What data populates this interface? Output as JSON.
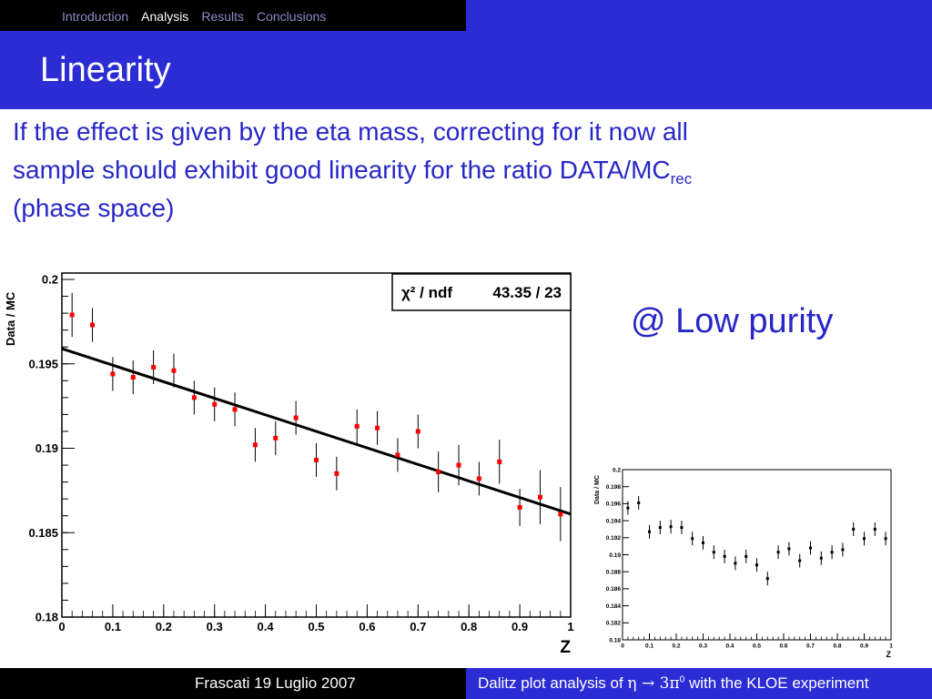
{
  "nav": {
    "items": [
      "Introduction",
      "Analysis",
      "Results",
      "Conclusions"
    ],
    "active_index": 1
  },
  "slide": {
    "title": "Linearity",
    "body_line1": "If the effect is given by the eta mass, correcting for it now all",
    "body_line2": "sample should exhibit good linearity for the ratio DATA/MC",
    "body_line2_sub": "rec",
    "body_line3": "(phase space)",
    "side_note": "@ Low purity"
  },
  "footer": {
    "left": "Frascati 19 Luglio 2007",
    "right_prefix": "Dalitz plot analysis of ",
    "right_eta": "η",
    "right_arrow": " → ",
    "right_3pi": "3π",
    "right_sup": "0",
    "right_suffix": " with the KLOE experiment"
  },
  "colors": {
    "blue": "#2c2cd4",
    "text_blue": "#2727c8",
    "marker_red": "#ff0000"
  },
  "chart_data": [
    {
      "type": "scatter",
      "title": "",
      "xlabel": "Z",
      "ylabel": "Data / MC",
      "xlim": [
        0,
        1
      ],
      "ylim": [
        0.18,
        0.2
      ],
      "xticks": [
        "0",
        "0.1",
        "0.2",
        "0.3",
        "0.4",
        "0.5",
        "0.6",
        "0.7",
        "0.8",
        "0.9",
        "1"
      ],
      "yticks": [
        "0.18",
        "0.185",
        "0.19",
        "0.195",
        "0.2"
      ],
      "stats_label": "χ² / ndf",
      "stats_value": "43.35 / 23",
      "marker_color": "#ff0000",
      "series": [
        {
          "x": [
            0.02,
            0.06,
            0.1,
            0.14,
            0.18,
            0.22,
            0.26,
            0.3,
            0.34,
            0.38,
            0.42,
            0.46,
            0.5,
            0.54,
            0.58,
            0.62,
            0.66,
            0.7,
            0.74,
            0.78,
            0.82,
            0.86,
            0.9,
            0.94,
            0.98
          ],
          "y": [
            0.1979,
            0.1973,
            0.1944,
            0.1942,
            0.1948,
            0.1946,
            0.193,
            0.1926,
            0.1923,
            0.1902,
            0.1906,
            0.1918,
            0.1893,
            0.1885,
            0.1913,
            0.1912,
            0.1896,
            0.191,
            0.1886,
            0.189,
            0.1882,
            0.1892,
            0.1865,
            0.1871,
            0.1861
          ],
          "yerr": [
            0.0013,
            0.001,
            0.001,
            0.001,
            0.001,
            0.001,
            0.001,
            0.001,
            0.001,
            0.001,
            0.001,
            0.001,
            0.001,
            0.001,
            0.001,
            0.001,
            0.001,
            0.001,
            0.0012,
            0.0012,
            0.001,
            0.0013,
            0.0011,
            0.0016,
            0.0016
          ]
        }
      ],
      "fit_line": {
        "x": [
          0,
          1
        ],
        "y": [
          0.1959,
          0.1861
        ]
      }
    },
    {
      "type": "scatter",
      "title": "",
      "xlabel": "Z",
      "ylabel": "Data / MC",
      "xlim": [
        0,
        1
      ],
      "ylim": [
        0.18,
        0.2
      ],
      "xticks": [
        "0",
        "0.1",
        "0.2",
        "0.3",
        "0.4",
        "0.5",
        "0.6",
        "0.7",
        "0.8",
        "0.9",
        "1"
      ],
      "yticks": [
        "0.18",
        "0.182",
        "0.184",
        "0.186",
        "0.188",
        "0.19",
        "0.192",
        "0.194",
        "0.196",
        "0.198",
        "0.2"
      ],
      "marker_color": "#000000",
      "series": [
        {
          "x": [
            0.02,
            0.06,
            0.1,
            0.14,
            0.18,
            0.22,
            0.26,
            0.3,
            0.34,
            0.38,
            0.42,
            0.46,
            0.5,
            0.54,
            0.58,
            0.62,
            0.66,
            0.7,
            0.74,
            0.78,
            0.82,
            0.86,
            0.9,
            0.94,
            0.98
          ],
          "y": [
            0.1955,
            0.1961,
            0.1927,
            0.1932,
            0.1933,
            0.1932,
            0.1919,
            0.1914,
            0.1903,
            0.1898,
            0.189,
            0.1898,
            0.1888,
            0.1872,
            0.1903,
            0.1907,
            0.1893,
            0.1908,
            0.1896,
            0.1903,
            0.1906,
            0.193,
            0.1919,
            0.193,
            0.1919
          ]
        }
      ]
    }
  ]
}
